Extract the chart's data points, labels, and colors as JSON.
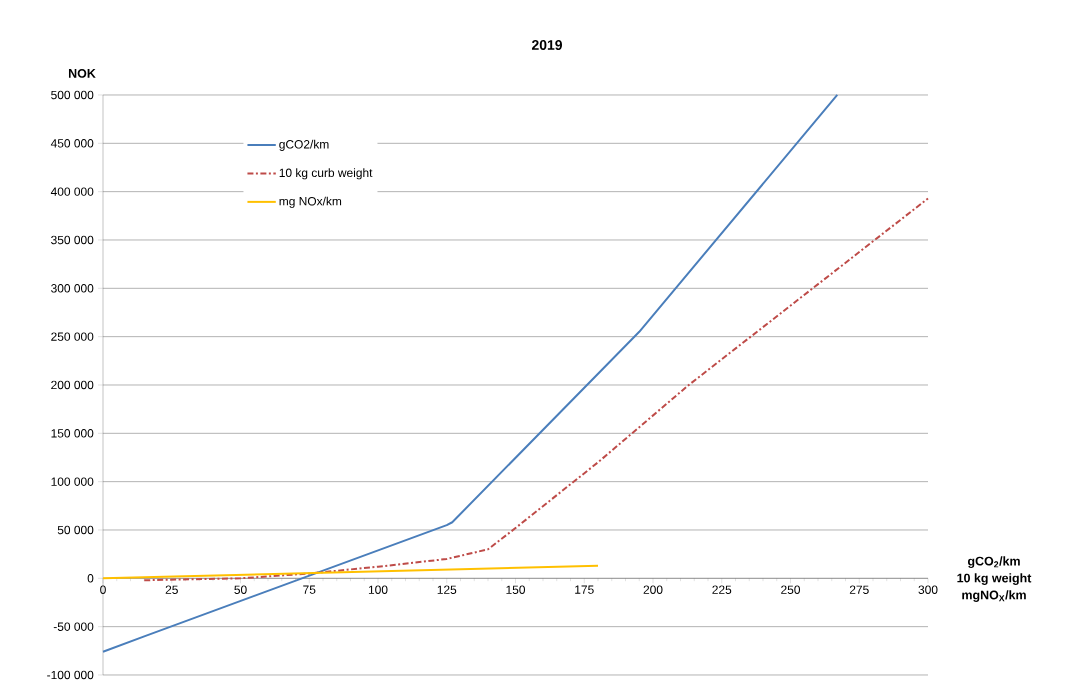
{
  "chart_data": {
    "type": "line",
    "title": "2019",
    "ylabel": "NOK",
    "xlabel": "gCO$_{2}$/km",
    "annotations": [
      "10 kg weight",
      "mgNO$_{X}$/km"
    ],
    "xlim": [
      0,
      300
    ],
    "xticks": [
      0,
      25,
      50,
      75,
      100,
      125,
      150,
      175,
      200,
      225,
      250,
      275,
      300
    ],
    "ylim": [
      -100000,
      500000
    ],
    "yticks": [
      {
        "value": -100000,
        "label": "-100 000"
      },
      {
        "value": -50000,
        "label": "-50 000"
      },
      {
        "value": 0,
        "label": "0"
      },
      {
        "value": 50000,
        "label": "50 000"
      },
      {
        "value": 100000,
        "label": "100 000"
      },
      {
        "value": 150000,
        "label": "150 000"
      },
      {
        "value": 200000,
        "label": "200 000"
      },
      {
        "value": 250000,
        "label": "250 000"
      },
      {
        "value": 300000,
        "label": "300 000"
      },
      {
        "value": 350000,
        "label": "350 000"
      },
      {
        "value": 400000,
        "label": "400 000"
      },
      {
        "value": 450000,
        "label": "450 000"
      },
      {
        "value": 500000,
        "label": "500 000"
      }
    ],
    "grid": "y",
    "legend": "top left",
    "marker": "none",
    "series": [
      {
        "name": "gCO2/km",
        "color": "#4a7ebb",
        "line_style": "solid",
        "x": [
          0,
          15,
          125,
          127,
          195,
          267
        ],
        "values": [
          -76000,
          -60000,
          55000,
          58000,
          255000,
          500000
        ]
      },
      {
        "name": "10 kg curb weight",
        "color": "#be4b48",
        "line_style": "dashed",
        "x": [
          15,
          50,
          75,
          100,
          125,
          140,
          150,
          180,
          213,
          300
        ],
        "values": [
          -2000,
          0,
          5000,
          12000,
          20000,
          30000,
          52000,
          120000,
          200000,
          393000
        ]
      },
      {
        "name": "mg NOx/km",
        "color": "#ffc000",
        "line_style": "solid",
        "x": [
          0,
          180
        ],
        "values": [
          0,
          13000
        ]
      }
    ]
  }
}
